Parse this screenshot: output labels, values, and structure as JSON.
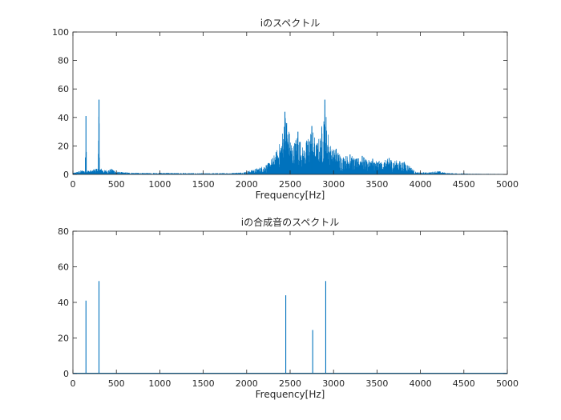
{
  "chart_data": [
    {
      "type": "line",
      "title": "iのスペクトル",
      "xlabel": "Frequency[Hz]",
      "ylabel": "",
      "xlim": [
        0,
        5000
      ],
      "ylim": [
        0,
        100
      ],
      "xticks": [
        0,
        500,
        1000,
        1500,
        2000,
        2500,
        3000,
        3500,
        4000,
        4500,
        5000
      ],
      "yticks": [
        0,
        20,
        40,
        60,
        80,
        100
      ],
      "grid": false,
      "color": "#0072BD",
      "peaks": [
        {
          "x": 150,
          "y": 41
        },
        {
          "x": 300,
          "y": 52.5
        },
        {
          "x": 2440,
          "y": 44
        },
        {
          "x": 2460,
          "y": 36
        },
        {
          "x": 2590,
          "y": 30
        },
        {
          "x": 2750,
          "y": 34
        },
        {
          "x": 2900,
          "y": 52.5
        },
        {
          "x": 3030,
          "y": 18
        },
        {
          "x": 3190,
          "y": 14
        },
        {
          "x": 3330,
          "y": 13
        },
        {
          "x": 3450,
          "y": 11
        },
        {
          "x": 3640,
          "y": 11.5
        }
      ],
      "envelope": [
        [
          0,
          1
        ],
        [
          100,
          3
        ],
        [
          140,
          3
        ],
        [
          150,
          41
        ],
        [
          160,
          3
        ],
        [
          220,
          3
        ],
        [
          290,
          5
        ],
        [
          300,
          52.5
        ],
        [
          310,
          5
        ],
        [
          360,
          3
        ],
        [
          460,
          4
        ],
        [
          500,
          2
        ],
        [
          600,
          1.5
        ],
        [
          800,
          1
        ],
        [
          1000,
          1.2
        ],
        [
          1500,
          0.8
        ],
        [
          1800,
          1
        ],
        [
          1950,
          1.5
        ],
        [
          2050,
          3
        ],
        [
          2150,
          5
        ],
        [
          2250,
          8
        ],
        [
          2330,
          15
        ],
        [
          2400,
          25
        ],
        [
          2440,
          44
        ],
        [
          2470,
          36
        ],
        [
          2530,
          20
        ],
        [
          2590,
          30
        ],
        [
          2650,
          18
        ],
        [
          2700,
          26
        ],
        [
          2750,
          34
        ],
        [
          2800,
          22
        ],
        [
          2850,
          28
        ],
        [
          2900,
          52.5
        ],
        [
          2930,
          32
        ],
        [
          2980,
          18
        ],
        [
          3030,
          18
        ],
        [
          3100,
          13
        ],
        [
          3190,
          14
        ],
        [
          3260,
          11
        ],
        [
          3330,
          13
        ],
        [
          3400,
          10
        ],
        [
          3450,
          11
        ],
        [
          3550,
          9
        ],
        [
          3640,
          11.5
        ],
        [
          3720,
          10
        ],
        [
          3820,
          9
        ],
        [
          3880,
          6
        ],
        [
          3950,
          1.5
        ],
        [
          4100,
          1.5
        ],
        [
          4200,
          2.5
        ],
        [
          4300,
          1
        ],
        [
          4600,
          0.5
        ],
        [
          5000,
          0.3
        ]
      ]
    },
    {
      "type": "line",
      "title": "iの合成音のスペクトル",
      "xlabel": "Frequency[Hz]",
      "ylabel": "",
      "xlim": [
        0,
        5000
      ],
      "ylim": [
        0,
        80
      ],
      "xticks": [
        0,
        500,
        1000,
        1500,
        2000,
        2500,
        3000,
        3500,
        4000,
        4500,
        5000
      ],
      "yticks": [
        0,
        20,
        40,
        60,
        80
      ],
      "grid": false,
      "color": "#0072BD",
      "peaks": [
        {
          "x": 150,
          "y": 41
        },
        {
          "x": 300,
          "y": 52
        },
        {
          "x": 2450,
          "y": 44
        },
        {
          "x": 2760,
          "y": 24.5
        },
        {
          "x": 2910,
          "y": 52
        }
      ]
    }
  ]
}
